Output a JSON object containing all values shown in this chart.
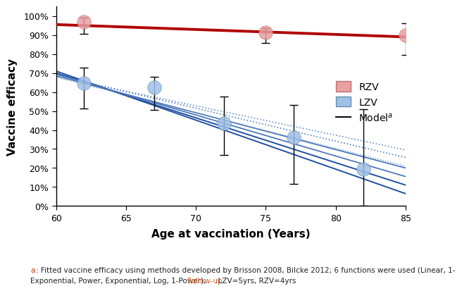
{
  "title": "",
  "xlabel": "Age at vaccination (Years)",
  "ylabel": "Vaccine efficacy",
  "xlim": [
    60,
    85
  ],
  "ylim": [
    0,
    1.05
  ],
  "yticks": [
    0.0,
    0.1,
    0.2,
    0.3,
    0.4,
    0.5,
    0.6,
    0.7,
    0.8,
    0.9,
    1.0
  ],
  "ytick_labels": [
    "0%",
    "10%",
    "20%",
    "30%",
    "40%",
    "50%",
    "60%",
    "70%",
    "80%",
    "90%",
    "100%"
  ],
  "xticks": [
    60,
    65,
    70,
    75,
    80,
    85
  ],
  "rzv_points": {
    "x": [
      62,
      75,
      85
    ],
    "y": [
      0.97,
      0.915,
      0.897
    ],
    "yerr_low": [
      0.062,
      0.058,
      0.102
    ],
    "yerr_high": [
      0.023,
      0.02,
      0.063
    ],
    "color": "#e8a0a0",
    "edgecolor": "#c07070"
  },
  "lzv_points": {
    "x": [
      62,
      67,
      72,
      77,
      82
    ],
    "y": [
      0.645,
      0.625,
      0.435,
      0.36,
      0.195
    ],
    "yerr_low": [
      0.13,
      0.12,
      0.165,
      0.245,
      0.195
    ],
    "yerr_high": [
      0.085,
      0.055,
      0.14,
      0.17,
      0.315
    ],
    "color": "#a0c0e8",
    "edgecolor": "#6090b0"
  },
  "rzv_line": {
    "x": [
      60,
      85
    ],
    "y": [
      0.955,
      0.89
    ],
    "color": "#b00000",
    "linewidth": 2.8
  },
  "lzv_lines_solid": [
    {
      "x": [
        60,
        85
      ],
      "y": [
        0.71,
        0.065
      ],
      "color": "#2050a0",
      "linewidth": 1.4
    },
    {
      "x": [
        60,
        85
      ],
      "y": [
        0.7,
        0.11
      ],
      "color": "#2050a0",
      "linewidth": 1.4
    },
    {
      "x": [
        60,
        85
      ],
      "y": [
        0.695,
        0.155
      ],
      "color": "#4070b8",
      "linewidth": 1.2
    },
    {
      "x": [
        60,
        85
      ],
      "y": [
        0.685,
        0.2
      ],
      "color": "#4070b8",
      "linewidth": 1.2
    }
  ],
  "lzv_lines_dotted": [
    {
      "x": [
        60,
        85
      ],
      "y": [
        0.688,
        0.255
      ],
      "color": "#5080c0",
      "linewidth": 1.2
    },
    {
      "x": [
        60,
        85
      ],
      "y": [
        0.682,
        0.295
      ],
      "color": "#6090c8",
      "linewidth": 1.2
    },
    {
      "x": [
        60,
        85
      ],
      "y": [
        0.678,
        0.21
      ],
      "color": "#7090c0",
      "linewidth": 1.0
    }
  ],
  "footnote_a_label": "a",
  "footnote_line1": ": Fitted vaccine efficacy using methods developed by Brisson 2008, Bilcke 2012; 6 functions were used (Linear, 1-",
  "footnote_line2_black1": "Exponential, Power, Exponential, Log, 1-Power); ",
  "footnote_text_orange": "Follow-up",
  "footnote_text_end": ":LZV=5yrs, RZV=4yrs",
  "footnote_color_a": "#c04000",
  "footnote_color_orange": "#e06020",
  "bg_color": "#ffffff",
  "legend_rzv_color": "#e8a0a0",
  "legend_lzv_color": "#a0c0e8",
  "legend_model_color": "#000000"
}
